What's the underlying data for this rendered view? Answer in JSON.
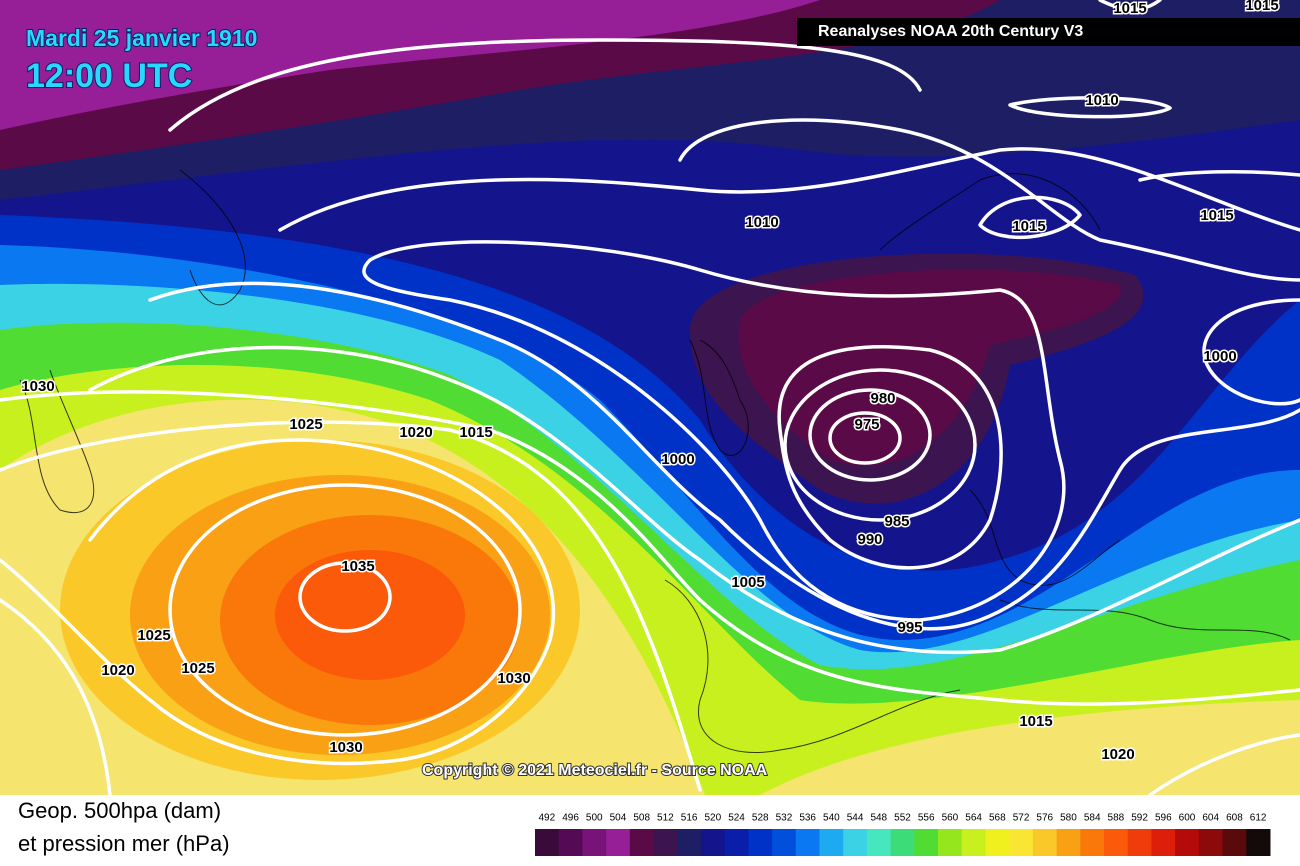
{
  "header": {
    "date": "Mardi 25 janvier 1910",
    "time": "12:00 UTC",
    "source": "Reanalyses NOAA 20th Century V3"
  },
  "isobar_labels": [
    1015,
    1015,
    1010,
    1010,
    1015,
    1015,
    1000,
    1030,
    1025,
    1020,
    1015,
    1000,
    980,
    975,
    985,
    990,
    1035,
    1005,
    995,
    1025,
    1020,
    1025,
    1030,
    1030,
    1015,
    1020
  ],
  "copyright": "Copyright © 2021 Meteociel.fr - Source NOAA",
  "footer": {
    "line1": "Geop. 500hpa (dam)",
    "line2": "et pression mer (hPa)"
  },
  "legend": {
    "ticks": [
      492,
      496,
      500,
      504,
      508,
      512,
      516,
      520,
      524,
      528,
      532,
      536,
      540,
      544,
      548,
      552,
      556,
      560,
      564,
      568,
      572,
      576,
      580,
      584,
      588,
      592,
      596,
      600,
      604,
      608,
      612
    ],
    "colors": [
      "#3a0a3a",
      "#550a55",
      "#781478",
      "#961e96",
      "#5a0a46",
      "#3c1450",
      "#1e1e64",
      "#14148c",
      "#0a1eaa",
      "#0032c8",
      "#0050dc",
      "#0a78f0",
      "#1eaaf0",
      "#3cd2e6",
      "#46e6be",
      "#3cdc78",
      "#50dc32",
      "#96e61e",
      "#c8f01e",
      "#f0f01e",
      "#fae632",
      "#fac828",
      "#faa014",
      "#fa780a",
      "#fa5a0a",
      "#f03c0a",
      "#dc1e0a",
      "#b40a0a",
      "#8c0a0a",
      "#5a0a0a",
      "#140a0a"
    ]
  }
}
